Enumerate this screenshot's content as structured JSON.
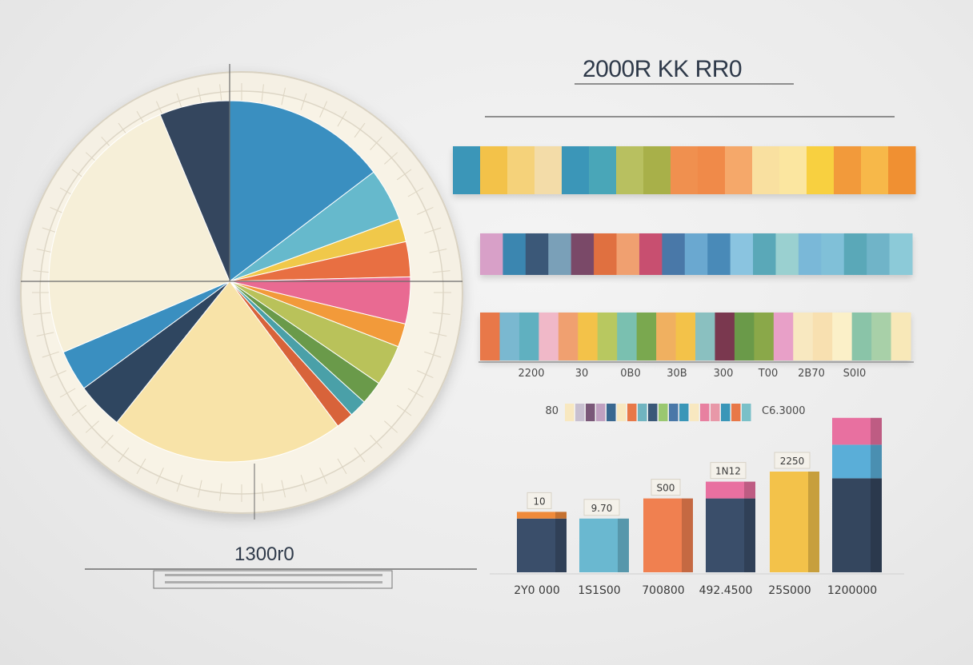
{
  "header": {
    "title": "2000R KK RR0"
  },
  "pie_caption": {
    "label": "1300r0"
  },
  "chart_data": [
    {
      "type": "pie",
      "title": "",
      "slices": [
        {
          "value": 14.0,
          "color": "#3a8fc0"
        },
        {
          "value": 4.5,
          "color": "#66b9cc"
        },
        {
          "value": 2.0,
          "color": "#f0c84a"
        },
        {
          "value": 3.0,
          "color": "#e86f42"
        },
        {
          "value": 4.0,
          "color": "#e96a92"
        },
        {
          "value": 2.0,
          "color": "#f29a3a"
        },
        {
          "value": 3.5,
          "color": "#b9c25a"
        },
        {
          "value": 2.0,
          "color": "#6a9a4a"
        },
        {
          "value": 1.5,
          "color": "#4aa0a8"
        },
        {
          "value": 1.5,
          "color": "#d8633a"
        },
        {
          "value": 20.0,
          "color": "#f8e3a8"
        },
        {
          "value": 4.0,
          "color": "#2f4660"
        },
        {
          "value": 3.5,
          "color": "#3a8fc0"
        },
        {
          "value": 24.0,
          "color": "#f6efd8"
        },
        {
          "value": 6.0,
          "color": "#34465e"
        }
      ]
    },
    {
      "type": "bar",
      "subtype": "stacked-horizontal",
      "x_tick_labels": [
        "2200",
        "30",
        "0B0",
        "30B",
        "300",
        "T00",
        "2B70",
        "S0I0"
      ],
      "rows": [
        {
          "colors": [
            "#3a96b8",
            "#f3c24a",
            "#f5d27a",
            "#f3dca8",
            "#3a96b8",
            "#4aa6b8",
            "#b8c060",
            "#a8b04a",
            "#f09050",
            "#f08a4a",
            "#f5a86a",
            "#f9e0a0",
            "#fbe6a0",
            "#f8d040",
            "#f29a3a",
            "#f7b84a",
            "#f09030"
          ]
        },
        {
          "colors": [
            "#d8a0c8",
            "#3a86b0",
            "#3a5878",
            "#7aa0b8",
            "#7a4868",
            "#e07040",
            "#f0a070",
            "#c85070",
            "#4a78a8",
            "#6aa8d0",
            "#4a8ab8",
            "#8ac4e0",
            "#5aa8b8",
            "#9ad0d0",
            "#7ab8d8",
            "#80c0d8",
            "#5aa8b8",
            "#70b4c8",
            "#8ccad8"
          ]
        },
        {
          "colors": [
            "#e87848",
            "#7ab8d0",
            "#60b0c0",
            "#f0b8c8",
            "#f0a070",
            "#f3c24a",
            "#b8c860",
            "#7ac0b0",
            "#7aa850",
            "#f0b060",
            "#f3c24a",
            "#8ac0c0",
            "#7a3850",
            "#6a9a48",
            "#8aa848",
            "#e8a0c8",
            "#f8e8c0",
            "#f8e0b0",
            "#fbf0c8",
            "#8ac4a8",
            "#a8d0a8",
            "#f8e8b8"
          ]
        }
      ]
    },
    {
      "type": "bar",
      "subtype": "legend-strip",
      "left_label": "80",
      "right_label": "C6.3000",
      "colors": [
        "#f8e8c0",
        "#c8c0d0",
        "#7a5878",
        "#c0a0c0",
        "#3a6890",
        "#f8e8c0",
        "#e87848",
        "#70b4c0",
        "#3a5878",
        "#9ac870",
        "#4a78a8",
        "#3a96b8",
        "#f8e8c0",
        "#e880a0",
        "#e898a8",
        "#3a96b8",
        "#e87848",
        "#7ac0c8"
      ]
    },
    {
      "type": "bar",
      "subtype": "stacked-vertical",
      "categories": [
        "2Y0 000",
        "1S1S00",
        "700800",
        "492.4500",
        "25S000",
        "1200000"
      ],
      "value_labels": [
        "10",
        "9.70",
        "S00",
        "1N12",
        "2250",
        ""
      ],
      "segments": [
        [
          {
            "value": 16,
            "color": "#3a4e6a"
          },
          {
            "value": 2,
            "color": "#f08a3a"
          }
        ],
        [
          {
            "value": 16,
            "color": "#6ab8d0"
          }
        ],
        [
          {
            "value": 22,
            "color": "#f08050"
          }
        ],
        [
          {
            "value": 22,
            "color": "#3a4e6a"
          },
          {
            "value": 5,
            "color": "#e870a0"
          }
        ],
        [
          {
            "value": 30,
            "color": "#f3c24a"
          }
        ],
        [
          {
            "value": 28,
            "color": "#34465e"
          },
          {
            "value": 10,
            "color": "#5aaed8"
          },
          {
            "value": 8,
            "color": "#e870a0"
          }
        ]
      ],
      "ylim": [
        0,
        50
      ]
    }
  ]
}
